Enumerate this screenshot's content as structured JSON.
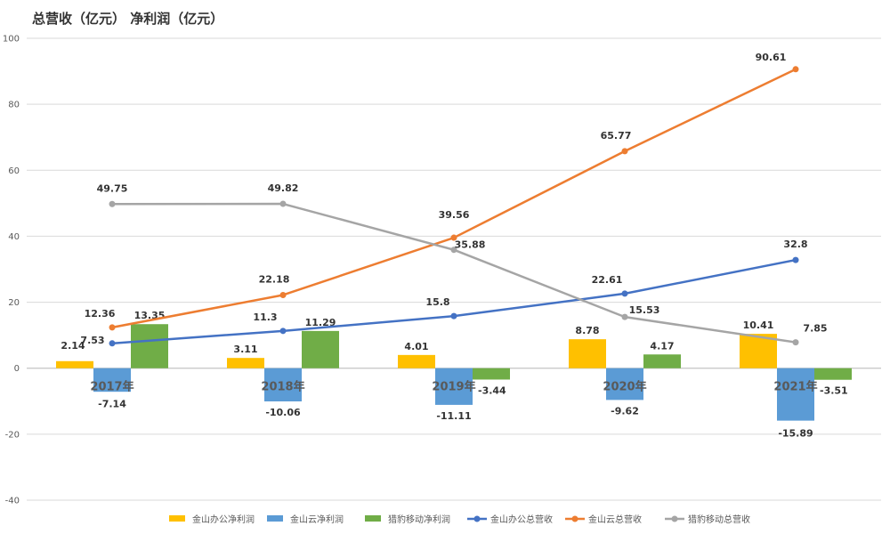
{
  "chart_data": {
    "type": "bar",
    "title": "总营收（亿元） 净利润（亿元）",
    "categories": [
      "2017年",
      "2018年",
      "2019年",
      "2020年",
      "2021年"
    ],
    "ylim": [
      -40,
      100
    ],
    "yticks": [
      -40,
      -20,
      0,
      20,
      40,
      60,
      80,
      100
    ],
    "grid": true,
    "legend_position": "bottom",
    "series": [
      {
        "name": "金山办公净利润",
        "kind": "bar",
        "color": "#FFC000",
        "values": [
          2.14,
          3.11,
          4.01,
          8.78,
          10.41
        ]
      },
      {
        "name": "金山云净利润",
        "kind": "bar",
        "color": "#5B9BD5",
        "values": [
          -7.14,
          -10.06,
          -11.11,
          -9.62,
          -15.89
        ]
      },
      {
        "name": "猎豹移动净利润",
        "kind": "bar",
        "color": "#70AD47",
        "values": [
          13.35,
          11.29,
          -3.44,
          4.17,
          -3.51
        ]
      },
      {
        "name": "金山办公总营收",
        "kind": "line",
        "color": "#4472C4",
        "values": [
          7.53,
          11.3,
          15.8,
          22.61,
          32.8
        ]
      },
      {
        "name": "金山云总营收",
        "kind": "line",
        "color": "#ED7D31",
        "values": [
          12.36,
          22.18,
          39.56,
          65.77,
          90.61
        ]
      },
      {
        "name": "猎豹移动总营收",
        "kind": "line",
        "color": "#A5A5A5",
        "values": [
          49.75,
          49.82,
          35.88,
          15.53,
          7.85
        ]
      }
    ]
  }
}
